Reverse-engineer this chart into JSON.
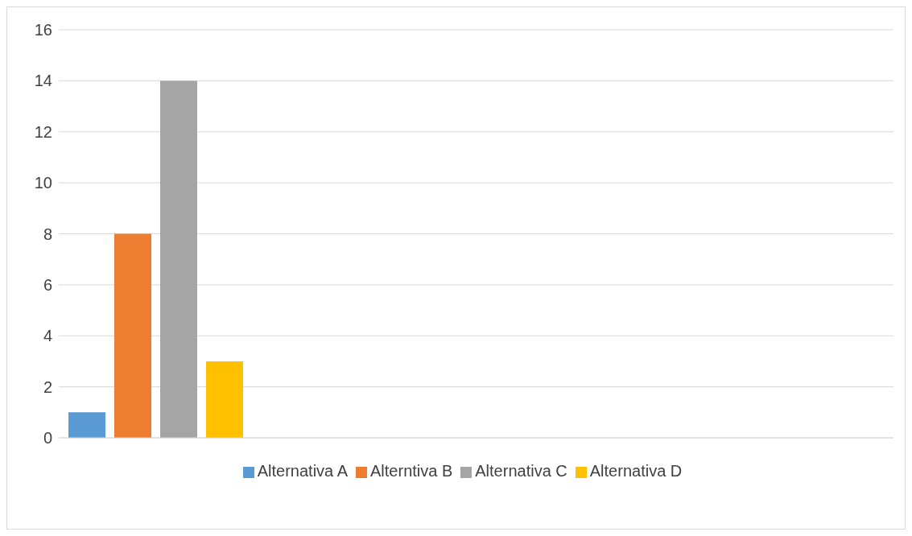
{
  "chart_data": {
    "type": "bar",
    "categories": [
      null
    ],
    "series": [
      {
        "name": "Alternativa A",
        "color": "#5b9bd5",
        "values": [
          1
        ]
      },
      {
        "name": "Alterntiva B",
        "color": "#ed7d31",
        "values": [
          8
        ]
      },
      {
        "name": "Alternativa C",
        "color": "#a5a5a5",
        "values": [
          14
        ]
      },
      {
        "name": "Alternativa D",
        "color": "#ffc000",
        "values": [
          3
        ]
      }
    ],
    "ylim": [
      0,
      16
    ],
    "yticks": [
      0,
      2,
      4,
      6,
      8,
      10,
      12,
      14,
      16
    ],
    "grid": "y",
    "legend": "bottom"
  }
}
